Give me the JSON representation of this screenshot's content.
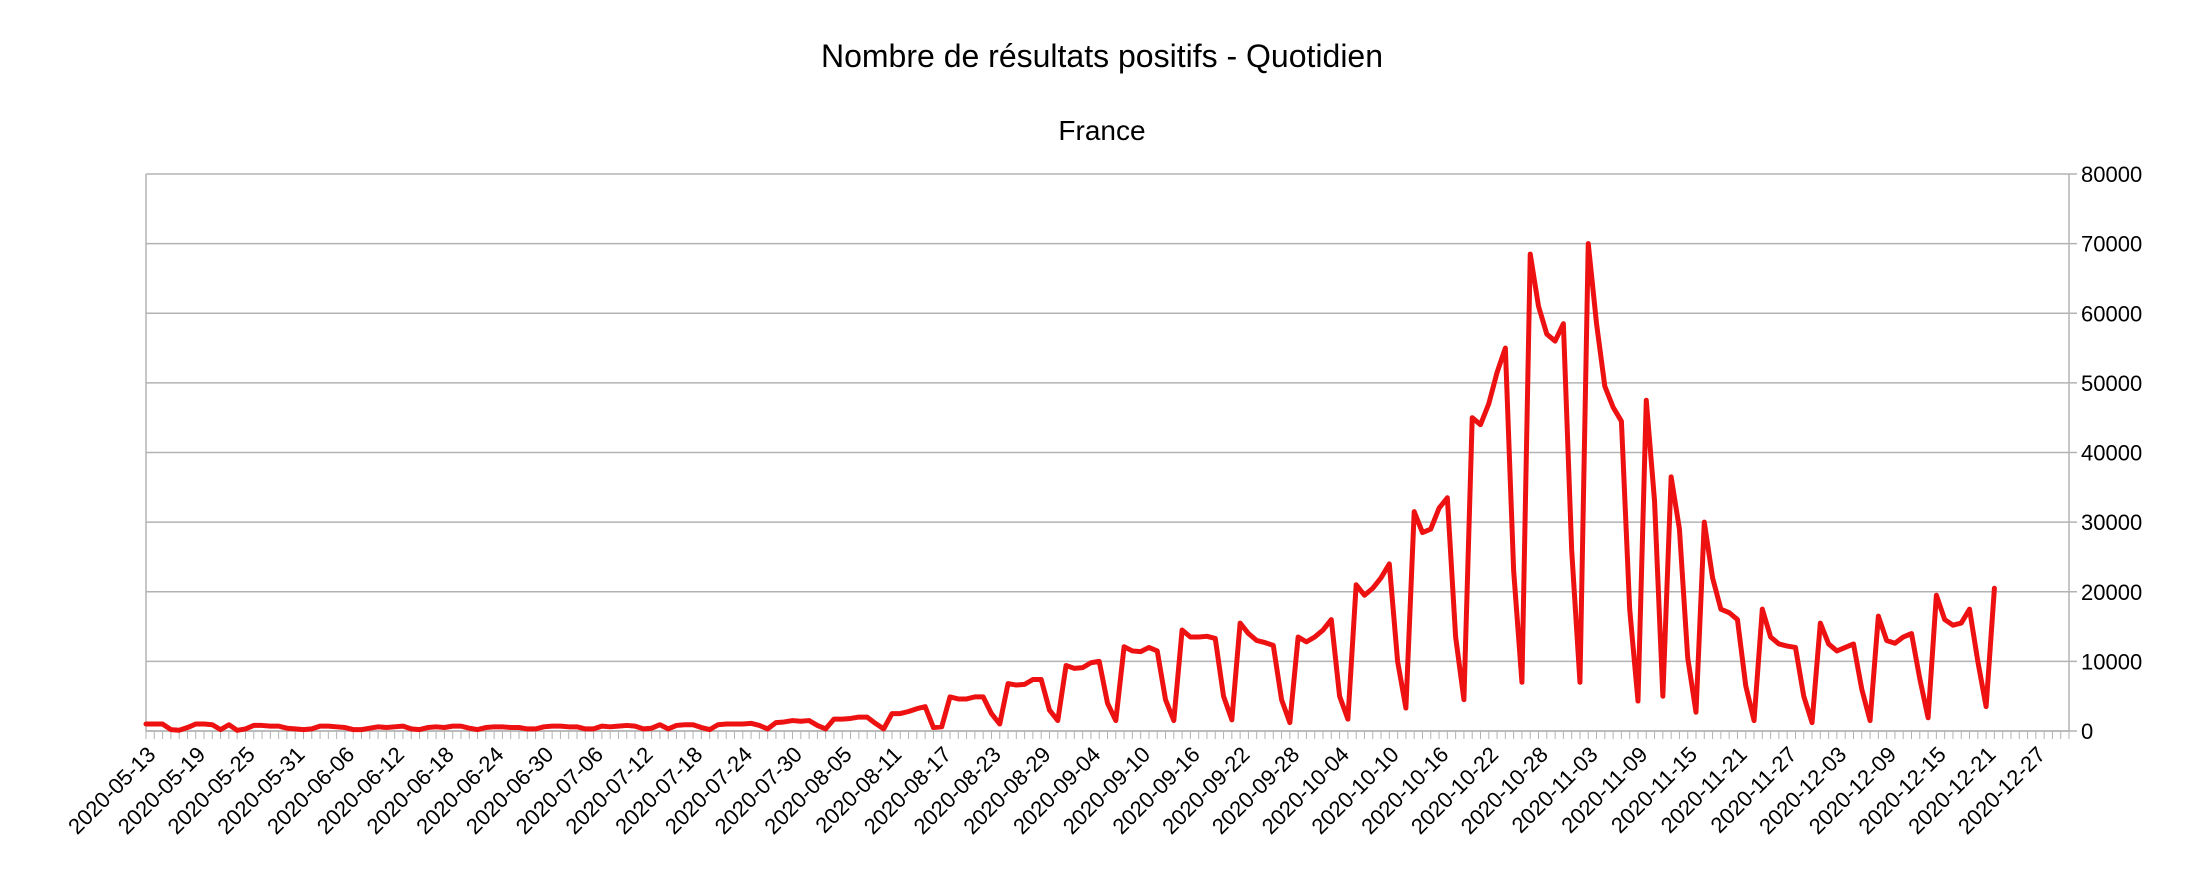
{
  "chart_data": {
    "type": "line",
    "title": "Nombre de résultats positifs - Quotidien",
    "subtitle": "France",
    "xlabel": "",
    "ylabel": "",
    "y_axis_position": "right",
    "ylim": [
      0,
      80000
    ],
    "yticks": [
      0,
      10000,
      20000,
      30000,
      40000,
      50000,
      60000,
      70000,
      80000
    ],
    "grid": true,
    "legend": "none",
    "x_start": "2020-05-13",
    "x_end": "2020-12-31",
    "x_tick_labels": [
      "2020-05-13",
      "2020-05-19",
      "2020-05-25",
      "2020-05-31",
      "2020-06-06",
      "2020-06-12",
      "2020-06-18",
      "2020-06-24",
      "2020-06-30",
      "2020-07-06",
      "2020-07-12",
      "2020-07-18",
      "2020-07-24",
      "2020-07-30",
      "2020-08-05",
      "2020-08-11",
      "2020-08-17",
      "2020-08-23",
      "2020-08-29",
      "2020-09-04",
      "2020-09-10",
      "2020-09-16",
      "2020-09-22",
      "2020-09-28",
      "2020-10-04",
      "2020-10-10",
      "2020-10-16",
      "2020-10-22",
      "2020-10-28",
      "2020-11-03",
      "2020-11-09",
      "2020-11-15",
      "2020-11-21",
      "2020-11-27",
      "2020-12-03",
      "2020-12-09",
      "2020-12-15",
      "2020-12-21",
      "2020-12-27"
    ],
    "series": [
      {
        "color": "#ee1111",
        "points": [
          [
            "2020-05-13",
            1000
          ],
          [
            "2020-05-14",
            1000
          ],
          [
            "2020-05-15",
            1000
          ],
          [
            "2020-05-16",
            200
          ],
          [
            "2020-05-17",
            100
          ],
          [
            "2020-05-18",
            500
          ],
          [
            "2020-05-19",
            1000
          ],
          [
            "2020-05-20",
            1000
          ],
          [
            "2020-05-21",
            900
          ],
          [
            "2020-05-22",
            200
          ],
          [
            "2020-05-23",
            900
          ],
          [
            "2020-05-24",
            100
          ],
          [
            "2020-05-25",
            300
          ],
          [
            "2020-05-26",
            800
          ],
          [
            "2020-05-27",
            800
          ],
          [
            "2020-05-28",
            700
          ],
          [
            "2020-05-29",
            700
          ],
          [
            "2020-05-30",
            400
          ],
          [
            "2020-05-31",
            300
          ],
          [
            "2020-06-01",
            200
          ],
          [
            "2020-06-02",
            300
          ],
          [
            "2020-06-03",
            700
          ],
          [
            "2020-06-04",
            700
          ],
          [
            "2020-06-05",
            600
          ],
          [
            "2020-06-06",
            500
          ],
          [
            "2020-06-07",
            200
          ],
          [
            "2020-06-08",
            200
          ],
          [
            "2020-06-09",
            400
          ],
          [
            "2020-06-10",
            600
          ],
          [
            "2020-06-11",
            500
          ],
          [
            "2020-06-12",
            600
          ],
          [
            "2020-06-13",
            700
          ],
          [
            "2020-06-14",
            300
          ],
          [
            "2020-06-15",
            200
          ],
          [
            "2020-06-16",
            500
          ],
          [
            "2020-06-17",
            600
          ],
          [
            "2020-06-18",
            500
          ],
          [
            "2020-06-19",
            700
          ],
          [
            "2020-06-20",
            700
          ],
          [
            "2020-06-21",
            400
          ],
          [
            "2020-06-22",
            200
          ],
          [
            "2020-06-23",
            500
          ],
          [
            "2020-06-24",
            600
          ],
          [
            "2020-06-25",
            600
          ],
          [
            "2020-06-26",
            500
          ],
          [
            "2020-06-27",
            500
          ],
          [
            "2020-06-28",
            300
          ],
          [
            "2020-06-29",
            300
          ],
          [
            "2020-06-30",
            600
          ],
          [
            "2020-07-01",
            700
          ],
          [
            "2020-07-02",
            700
          ],
          [
            "2020-07-03",
            600
          ],
          [
            "2020-07-04",
            600
          ],
          [
            "2020-07-05",
            300
          ],
          [
            "2020-07-06",
            300
          ],
          [
            "2020-07-07",
            700
          ],
          [
            "2020-07-08",
            600
          ],
          [
            "2020-07-09",
            700
          ],
          [
            "2020-07-10",
            800
          ],
          [
            "2020-07-11",
            700
          ],
          [
            "2020-07-12",
            300
          ],
          [
            "2020-07-13",
            400
          ],
          [
            "2020-07-14",
            900
          ],
          [
            "2020-07-15",
            300
          ],
          [
            "2020-07-16",
            800
          ],
          [
            "2020-07-17",
            900
          ],
          [
            "2020-07-18",
            900
          ],
          [
            "2020-07-19",
            500
          ],
          [
            "2020-07-20",
            200
          ],
          [
            "2020-07-21",
            900
          ],
          [
            "2020-07-22",
            1000
          ],
          [
            "2020-07-23",
            1000
          ],
          [
            "2020-07-24",
            1000
          ],
          [
            "2020-07-25",
            1100
          ],
          [
            "2020-07-26",
            800
          ],
          [
            "2020-07-27",
            300
          ],
          [
            "2020-07-28",
            1200
          ],
          [
            "2020-07-29",
            1300
          ],
          [
            "2020-07-30",
            1500
          ],
          [
            "2020-07-31",
            1400
          ],
          [
            "2020-08-01",
            1500
          ],
          [
            "2020-08-02",
            800
          ],
          [
            "2020-08-03",
            300
          ],
          [
            "2020-08-04",
            1700
          ],
          [
            "2020-08-05",
            1700
          ],
          [
            "2020-08-06",
            1800
          ],
          [
            "2020-08-07",
            2000
          ],
          [
            "2020-08-08",
            2000
          ],
          [
            "2020-08-09",
            1100
          ],
          [
            "2020-08-10",
            300
          ],
          [
            "2020-08-11",
            2500
          ],
          [
            "2020-08-12",
            2500
          ],
          [
            "2020-08-13",
            2800
          ],
          [
            "2020-08-14",
            3200
          ],
          [
            "2020-08-15",
            3500
          ],
          [
            "2020-08-16",
            500
          ],
          [
            "2020-08-17",
            600
          ],
          [
            "2020-08-18",
            4900
          ],
          [
            "2020-08-19",
            4600
          ],
          [
            "2020-08-20",
            4600
          ],
          [
            "2020-08-21",
            4900
          ],
          [
            "2020-08-22",
            4900
          ],
          [
            "2020-08-23",
            2500
          ],
          [
            "2020-08-24",
            1000
          ],
          [
            "2020-08-25",
            6800
          ],
          [
            "2020-08-26",
            6600
          ],
          [
            "2020-08-27",
            6700
          ],
          [
            "2020-08-28",
            7400
          ],
          [
            "2020-08-29",
            7400
          ],
          [
            "2020-08-30",
            3000
          ],
          [
            "2020-08-31",
            1500
          ],
          [
            "2020-09-01",
            9400
          ],
          [
            "2020-09-02",
            9000
          ],
          [
            "2020-09-03",
            9100
          ],
          [
            "2020-09-04",
            9800
          ],
          [
            "2020-09-05",
            10000
          ],
          [
            "2020-09-06",
            4000
          ],
          [
            "2020-09-07",
            1500
          ],
          [
            "2020-09-08",
            12100
          ],
          [
            "2020-09-09",
            11500
          ],
          [
            "2020-09-10",
            11400
          ],
          [
            "2020-09-11",
            12000
          ],
          [
            "2020-09-12",
            11500
          ],
          [
            "2020-09-13",
            4500
          ],
          [
            "2020-09-14",
            1500
          ],
          [
            "2020-09-15",
            14500
          ],
          [
            "2020-09-16",
            13500
          ],
          [
            "2020-09-17",
            13500
          ],
          [
            "2020-09-18",
            13600
          ],
          [
            "2020-09-19",
            13300
          ],
          [
            "2020-09-20",
            5000
          ],
          [
            "2020-09-21",
            1600
          ],
          [
            "2020-09-22",
            15500
          ],
          [
            "2020-09-23",
            14000
          ],
          [
            "2020-09-24",
            13000
          ],
          [
            "2020-09-25",
            12700
          ],
          [
            "2020-09-26",
            12300
          ],
          [
            "2020-09-27",
            4500
          ],
          [
            "2020-09-28",
            1200
          ],
          [
            "2020-09-29",
            13500
          ],
          [
            "2020-09-30",
            12800
          ],
          [
            "2020-10-01",
            13500
          ],
          [
            "2020-10-02",
            14500
          ],
          [
            "2020-10-03",
            16000
          ],
          [
            "2020-10-04",
            5000
          ],
          [
            "2020-10-05",
            1700
          ],
          [
            "2020-10-06",
            21000
          ],
          [
            "2020-10-07",
            19500
          ],
          [
            "2020-10-08",
            20500
          ],
          [
            "2020-10-09",
            22000
          ],
          [
            "2020-10-10",
            24000
          ],
          [
            "2020-10-11",
            10000
          ],
          [
            "2020-10-12",
            3300
          ],
          [
            "2020-10-13",
            31500
          ],
          [
            "2020-10-14",
            28500
          ],
          [
            "2020-10-15",
            29000
          ],
          [
            "2020-10-16",
            32000
          ],
          [
            "2020-10-17",
            33500
          ],
          [
            "2020-10-18",
            13500
          ],
          [
            "2020-10-19",
            4500
          ],
          [
            "2020-10-20",
            45000
          ],
          [
            "2020-10-21",
            44000
          ],
          [
            "2020-10-22",
            47000
          ],
          [
            "2020-10-23",
            51500
          ],
          [
            "2020-10-24",
            55000
          ],
          [
            "2020-10-25",
            23000
          ],
          [
            "2020-10-26",
            7000
          ],
          [
            "2020-10-27",
            68500
          ],
          [
            "2020-10-28",
            61000
          ],
          [
            "2020-10-29",
            57000
          ],
          [
            "2020-10-30",
            56000
          ],
          [
            "2020-10-31",
            58500
          ],
          [
            "2020-11-01",
            26000
          ],
          [
            "2020-11-02",
            7000
          ],
          [
            "2020-11-03",
            70000
          ],
          [
            "2020-11-04",
            58500
          ],
          [
            "2020-11-05",
            49500
          ],
          [
            "2020-11-06",
            46500
          ],
          [
            "2020-11-07",
            44500
          ],
          [
            "2020-11-08",
            17500
          ],
          [
            "2020-11-09",
            4300
          ],
          [
            "2020-11-10",
            47500
          ],
          [
            "2020-11-11",
            33000
          ],
          [
            "2020-11-12",
            5000
          ],
          [
            "2020-11-13",
            36500
          ],
          [
            "2020-11-14",
            29000
          ],
          [
            "2020-11-15",
            10500
          ],
          [
            "2020-11-16",
            2700
          ],
          [
            "2020-11-17",
            30000
          ],
          [
            "2020-11-18",
            22000
          ],
          [
            "2020-11-19",
            17500
          ],
          [
            "2020-11-20",
            17000
          ],
          [
            "2020-11-21",
            16000
          ],
          [
            "2020-11-22",
            6500
          ],
          [
            "2020-11-23",
            1500
          ],
          [
            "2020-11-24",
            17500
          ],
          [
            "2020-11-25",
            13500
          ],
          [
            "2020-11-26",
            12500
          ],
          [
            "2020-11-27",
            12200
          ],
          [
            "2020-11-28",
            12000
          ],
          [
            "2020-11-29",
            5000
          ],
          [
            "2020-11-30",
            1200
          ],
          [
            "2020-12-01",
            15500
          ],
          [
            "2020-12-02",
            12500
          ],
          [
            "2020-12-03",
            11500
          ],
          [
            "2020-12-04",
            12000
          ],
          [
            "2020-12-05",
            12500
          ],
          [
            "2020-12-06",
            6000
          ],
          [
            "2020-12-07",
            1500
          ],
          [
            "2020-12-08",
            16500
          ],
          [
            "2020-12-09",
            13000
          ],
          [
            "2020-12-10",
            12600
          ],
          [
            "2020-12-11",
            13500
          ],
          [
            "2020-12-12",
            14000
          ],
          [
            "2020-12-13",
            7500
          ],
          [
            "2020-12-14",
            1900
          ],
          [
            "2020-12-15",
            19500
          ],
          [
            "2020-12-16",
            16000
          ],
          [
            "2020-12-17",
            15200
          ],
          [
            "2020-12-18",
            15500
          ],
          [
            "2020-12-19",
            17500
          ],
          [
            "2020-12-20",
            10000
          ],
          [
            "2020-12-21",
            3500
          ],
          [
            "2020-12-22",
            20500
          ]
        ]
      }
    ]
  }
}
